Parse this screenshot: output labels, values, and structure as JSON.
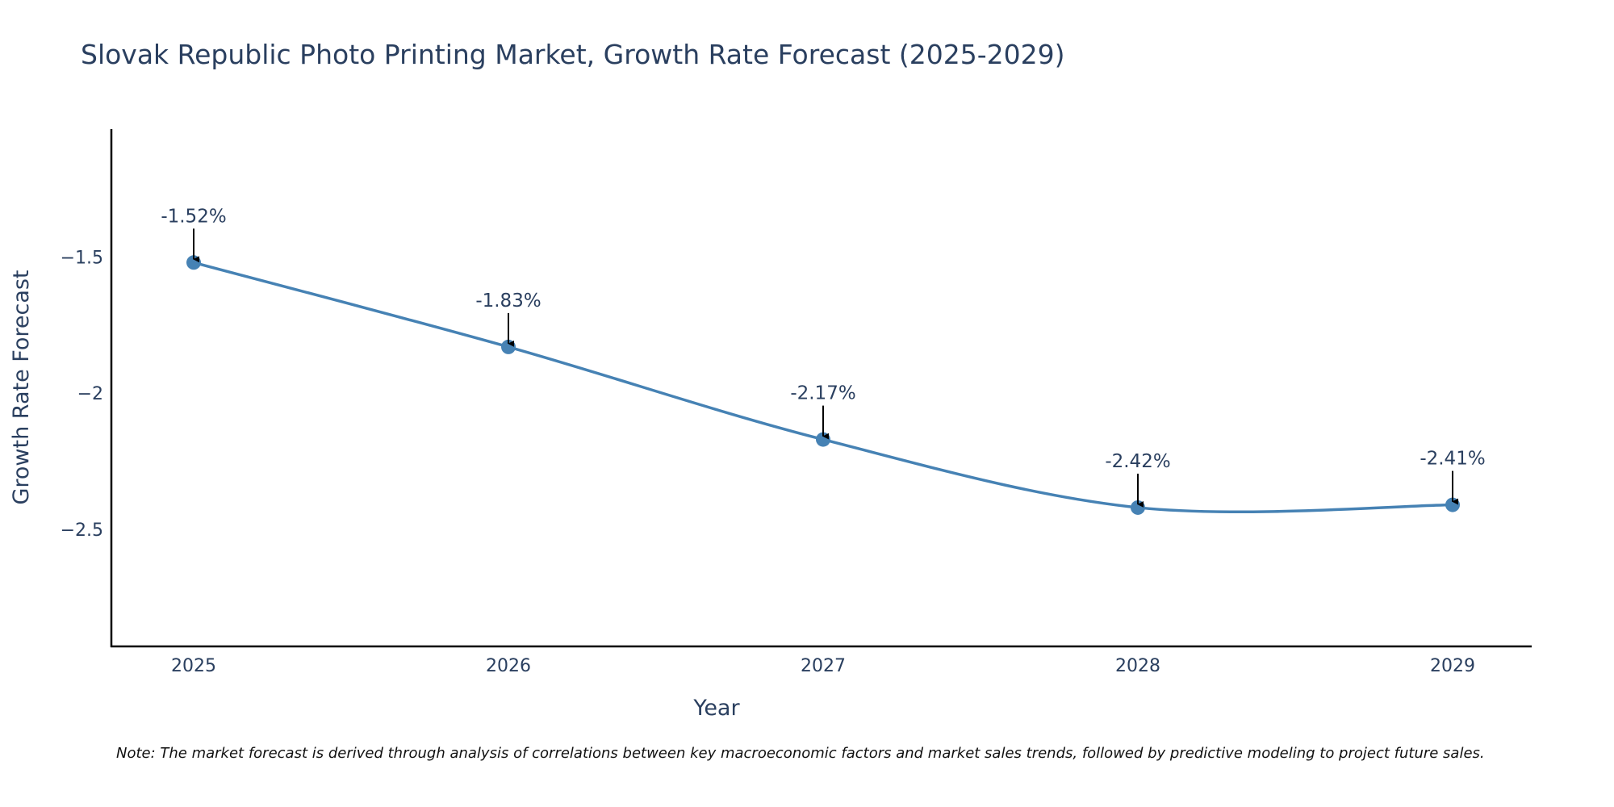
{
  "chart_data": {
    "type": "line",
    "title": "Slovak Republic Photo Printing Market, Growth Rate Forecast (2025-2029)",
    "xlabel": "Year",
    "ylabel": "Growth Rate Forecast",
    "x": [
      "2025",
      "2026",
      "2027",
      "2028",
      "2029"
    ],
    "values": [
      -1.52,
      -1.83,
      -2.17,
      -2.42,
      -2.41
    ],
    "data_labels": [
      "-1.52%",
      "-1.83%",
      "-2.17%",
      "-2.42%",
      "-2.41%"
    ],
    "y_ticks": [
      -1.5,
      -2,
      -2.5
    ],
    "y_tick_labels": [
      "−1.5",
      "−2",
      "−2.5"
    ],
    "ylim": [
      -2.93,
      -1.03
    ],
    "grid": false,
    "line_shape": "spline",
    "marker": "circle",
    "annotations": "arrow from each data label to its point",
    "note": "Note: The market forecast is derived through analysis of correlations between key macroeconomic factors and market sales trends, followed by predictive modeling to project future sales."
  },
  "colors": {
    "series": "#4682b4",
    "text": "#2a3f5f",
    "axis": "#000000"
  }
}
